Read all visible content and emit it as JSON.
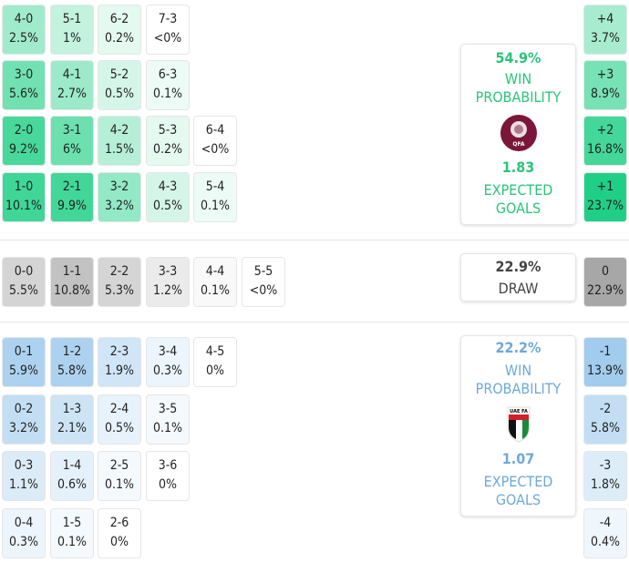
{
  "colors": {
    "home": "#1ecf85",
    "draw": "#9a9a9a",
    "away": "#7fb9e6",
    "home_text": "#2bc47a",
    "away_text": "#6ea9d8",
    "draw_text": "#444444"
  },
  "home": {
    "grid": [
      [
        {
          "score": "4-0",
          "pct": "2.5%",
          "p": 2.5
        },
        {
          "score": "5-1",
          "pct": "1%",
          "p": 1
        },
        {
          "score": "6-2",
          "pct": "0.2%",
          "p": 0.2
        },
        {
          "score": "7-3",
          "pct": "<0%",
          "p": 0
        }
      ],
      [
        {
          "score": "3-0",
          "pct": "5.6%",
          "p": 5.6
        },
        {
          "score": "4-1",
          "pct": "2.7%",
          "p": 2.7
        },
        {
          "score": "5-2",
          "pct": "0.5%",
          "p": 0.5
        },
        {
          "score": "6-3",
          "pct": "0.1%",
          "p": 0.1
        }
      ],
      [
        {
          "score": "2-0",
          "pct": "9.2%",
          "p": 9.2
        },
        {
          "score": "3-1",
          "pct": "6%",
          "p": 6
        },
        {
          "score": "4-2",
          "pct": "1.5%",
          "p": 1.5
        },
        {
          "score": "5-3",
          "pct": "0.2%",
          "p": 0.2
        },
        {
          "score": "6-4",
          "pct": "<0%",
          "p": 0
        }
      ],
      [
        {
          "score": "1-0",
          "pct": "10.1%",
          "p": 10.1
        },
        {
          "score": "2-1",
          "pct": "9.9%",
          "p": 9.9
        },
        {
          "score": "3-2",
          "pct": "3.2%",
          "p": 3.2
        },
        {
          "score": "4-3",
          "pct": "0.5%",
          "p": 0.5
        },
        {
          "score": "5-4",
          "pct": "0.1%",
          "p": 0.1
        }
      ]
    ],
    "margins": [
      {
        "label": "+4",
        "pct": "3.7%",
        "p": 3.7
      },
      {
        "label": "+3",
        "pct": "8.9%",
        "p": 8.9
      },
      {
        "label": "+2",
        "pct": "16.8%",
        "p": 16.8
      },
      {
        "label": "+1",
        "pct": "23.7%",
        "p": 23.7
      }
    ],
    "summary": {
      "win_pct": "54.9%",
      "win_label": "WIN PROBABILITY",
      "xg": "1.83",
      "xg_label": "EXPECTED GOALS",
      "logo": "QFA",
      "logo_icon": "qatar-fa-crest"
    }
  },
  "draw": {
    "grid": [
      [
        {
          "score": "0-0",
          "pct": "5.5%",
          "p": 5.5
        },
        {
          "score": "1-1",
          "pct": "10.8%",
          "p": 10.8
        },
        {
          "score": "2-2",
          "pct": "5.3%",
          "p": 5.3
        },
        {
          "score": "3-3",
          "pct": "1.2%",
          "p": 1.2
        },
        {
          "score": "4-4",
          "pct": "0.1%",
          "p": 0.1
        },
        {
          "score": "5-5",
          "pct": "<0%",
          "p": 0
        }
      ]
    ],
    "margins": [
      {
        "label": "0",
        "pct": "22.9%",
        "p": 22.9
      }
    ],
    "summary": {
      "pct": "22.9%",
      "label": "DRAW"
    }
  },
  "away": {
    "grid": [
      [
        {
          "score": "0-1",
          "pct": "5.9%",
          "p": 5.9
        },
        {
          "score": "1-2",
          "pct": "5.8%",
          "p": 5.8
        },
        {
          "score": "2-3",
          "pct": "1.9%",
          "p": 1.9
        },
        {
          "score": "3-4",
          "pct": "0.3%",
          "p": 0.3
        },
        {
          "score": "4-5",
          "pct": "0%",
          "p": 0
        }
      ],
      [
        {
          "score": "0-2",
          "pct": "3.2%",
          "p": 3.2
        },
        {
          "score": "1-3",
          "pct": "2.1%",
          "p": 2.1
        },
        {
          "score": "2-4",
          "pct": "0.5%",
          "p": 0.5
        },
        {
          "score": "3-5",
          "pct": "0.1%",
          "p": 0.1
        }
      ],
      [
        {
          "score": "0-3",
          "pct": "1.1%",
          "p": 1.1
        },
        {
          "score": "1-4",
          "pct": "0.6%",
          "p": 0.6
        },
        {
          "score": "2-5",
          "pct": "0.1%",
          "p": 0.1
        },
        {
          "score": "3-6",
          "pct": "0%",
          "p": 0
        }
      ],
      [
        {
          "score": "0-4",
          "pct": "0.3%",
          "p": 0.3
        },
        {
          "score": "1-5",
          "pct": "0.1%",
          "p": 0.1
        },
        {
          "score": "2-6",
          "pct": "0%",
          "p": 0
        }
      ]
    ],
    "margins": [
      {
        "label": "-1",
        "pct": "13.9%",
        "p": 13.9
      },
      {
        "label": "-2",
        "pct": "5.8%",
        "p": 5.8
      },
      {
        "label": "-3",
        "pct": "1.8%",
        "p": 1.8
      },
      {
        "label": "-4",
        "pct": "0.4%",
        "p": 0.4
      }
    ],
    "summary": {
      "win_pct": "22.2%",
      "win_label": "WIN PROBABILITY",
      "xg": "1.07",
      "xg_label": "EXPECTED GOALS",
      "logo": "UAE FA",
      "logo_icon": "uae-fa-crest"
    }
  }
}
